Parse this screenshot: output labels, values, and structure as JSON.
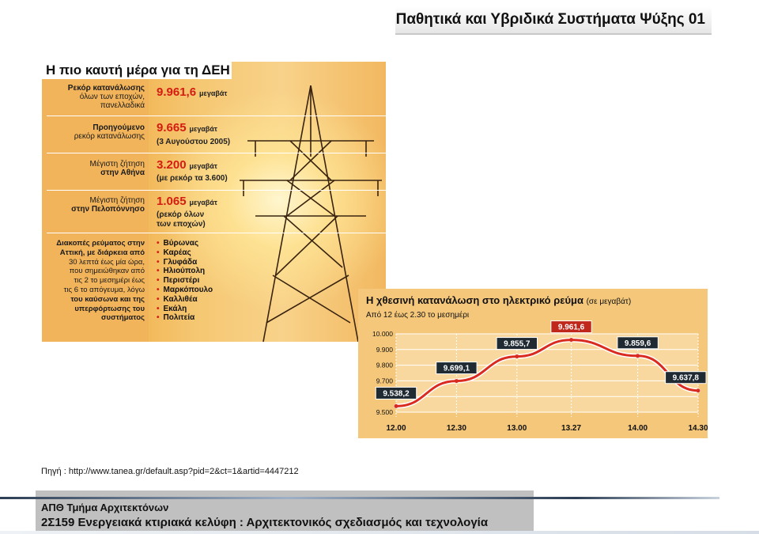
{
  "slide": {
    "title": "Παθητικά και Υβριδικά Συστήματα Ψύξης 01",
    "source": "Πηγή : http://www.tanea.gr/default.asp?pid=2&ct=1&artid=4447212",
    "footer_dept": "ΑΠΘ Τμήμα Αρχιτεκτόνων",
    "footer_course": "2Σ159 Ενεργειακά κτιριακά κελύφη : Αρχιτεκτονικός σχεδιασμός και τεχνολογία"
  },
  "infographic": {
    "heading": "Η πιο καυτή μέρα για τη ΔΕΗ",
    "rows": [
      {
        "label_line1": "Ρεκόρ κατανάλωσης",
        "label_line2": "όλων των εποχών,",
        "label_line3": "πανελλαδικά",
        "value": "9.961,6",
        "unit": "μεγαβάτ",
        "note": ""
      },
      {
        "label_line1": "Προηγούμενο",
        "label_line2": "ρεκόρ κατανάλωσης",
        "label_line3": "",
        "value": "9.665",
        "unit": "μεγαβάτ",
        "note": "(3 Αυγούστου 2005)"
      },
      {
        "label_line1": "Μέγιστη ζήτηση",
        "label_line2": "στην Αθήνα",
        "label_line3": "",
        "value": "3.200",
        "unit": "μεγαβάτ",
        "note": "(με ρεκόρ τα 3.600)"
      },
      {
        "label_line1": "Μέγιστη ζήτηση",
        "label_line2": "στην Πελοπόννησο",
        "label_line3": "",
        "value": "1.065",
        "unit": "μεγαβάτ",
        "note": "(ρεκόρ όλων"
      }
    ],
    "last_note_line2": "των εποχών)",
    "outage_text": [
      "Διακοπές ρεύματος στην",
      "Αττική, με διάρκεια από",
      "30 λεπτά έως μία ώρα,",
      "που σημειώθηκαν από",
      "τις 2 το μεσημέρι έως",
      "τις 6 το απόγευμα, λόγω",
      "του καύσωνα και της",
      "υπερφόρτωσης του",
      "συστήματος"
    ],
    "suburbs": [
      "Βύρωνας",
      "Καρέας",
      "Γλυφάδα",
      "Ηλιούπολη",
      "Περιστέρι",
      "Μαρκόπουλο",
      "Καλλιθέα",
      "Εκάλη",
      "Πολιτεία"
    ]
  },
  "chart_data": {
    "type": "line",
    "title": "Η χθεσινή κατανάλωση στο ηλεκτρικό ρεύμα",
    "title_unit": "(σε μεγαβάτ)",
    "subtitle": "Από 12 έως 2.30 το μεσημέρι",
    "x": [
      "12.00",
      "12.30",
      "13.00",
      "13.27",
      "14.00",
      "14.30"
    ],
    "x_minutes": [
      0,
      30,
      60,
      87,
      120,
      150
    ],
    "series": [
      {
        "name": "",
        "values": [
          9538.2,
          9699.1,
          9855.7,
          9961.6,
          9859.6,
          9637.8
        ],
        "labels": [
          "9.538,2",
          "9.699,1",
          "9.855,7",
          "9.961,6",
          "9.859,6",
          "9.637,8"
        ]
      }
    ],
    "yticks": [
      "10.000",
      "9.900",
      "9.800",
      "9.700",
      "9.600",
      "9.500"
    ],
    "ylim": [
      9500,
      10000
    ],
    "grid": true,
    "colors": {
      "line": "#d92b1f",
      "peak_label_bg": "#c0281c",
      "label_bg": "#1f2a33",
      "panel": "#f4c77a"
    }
  }
}
